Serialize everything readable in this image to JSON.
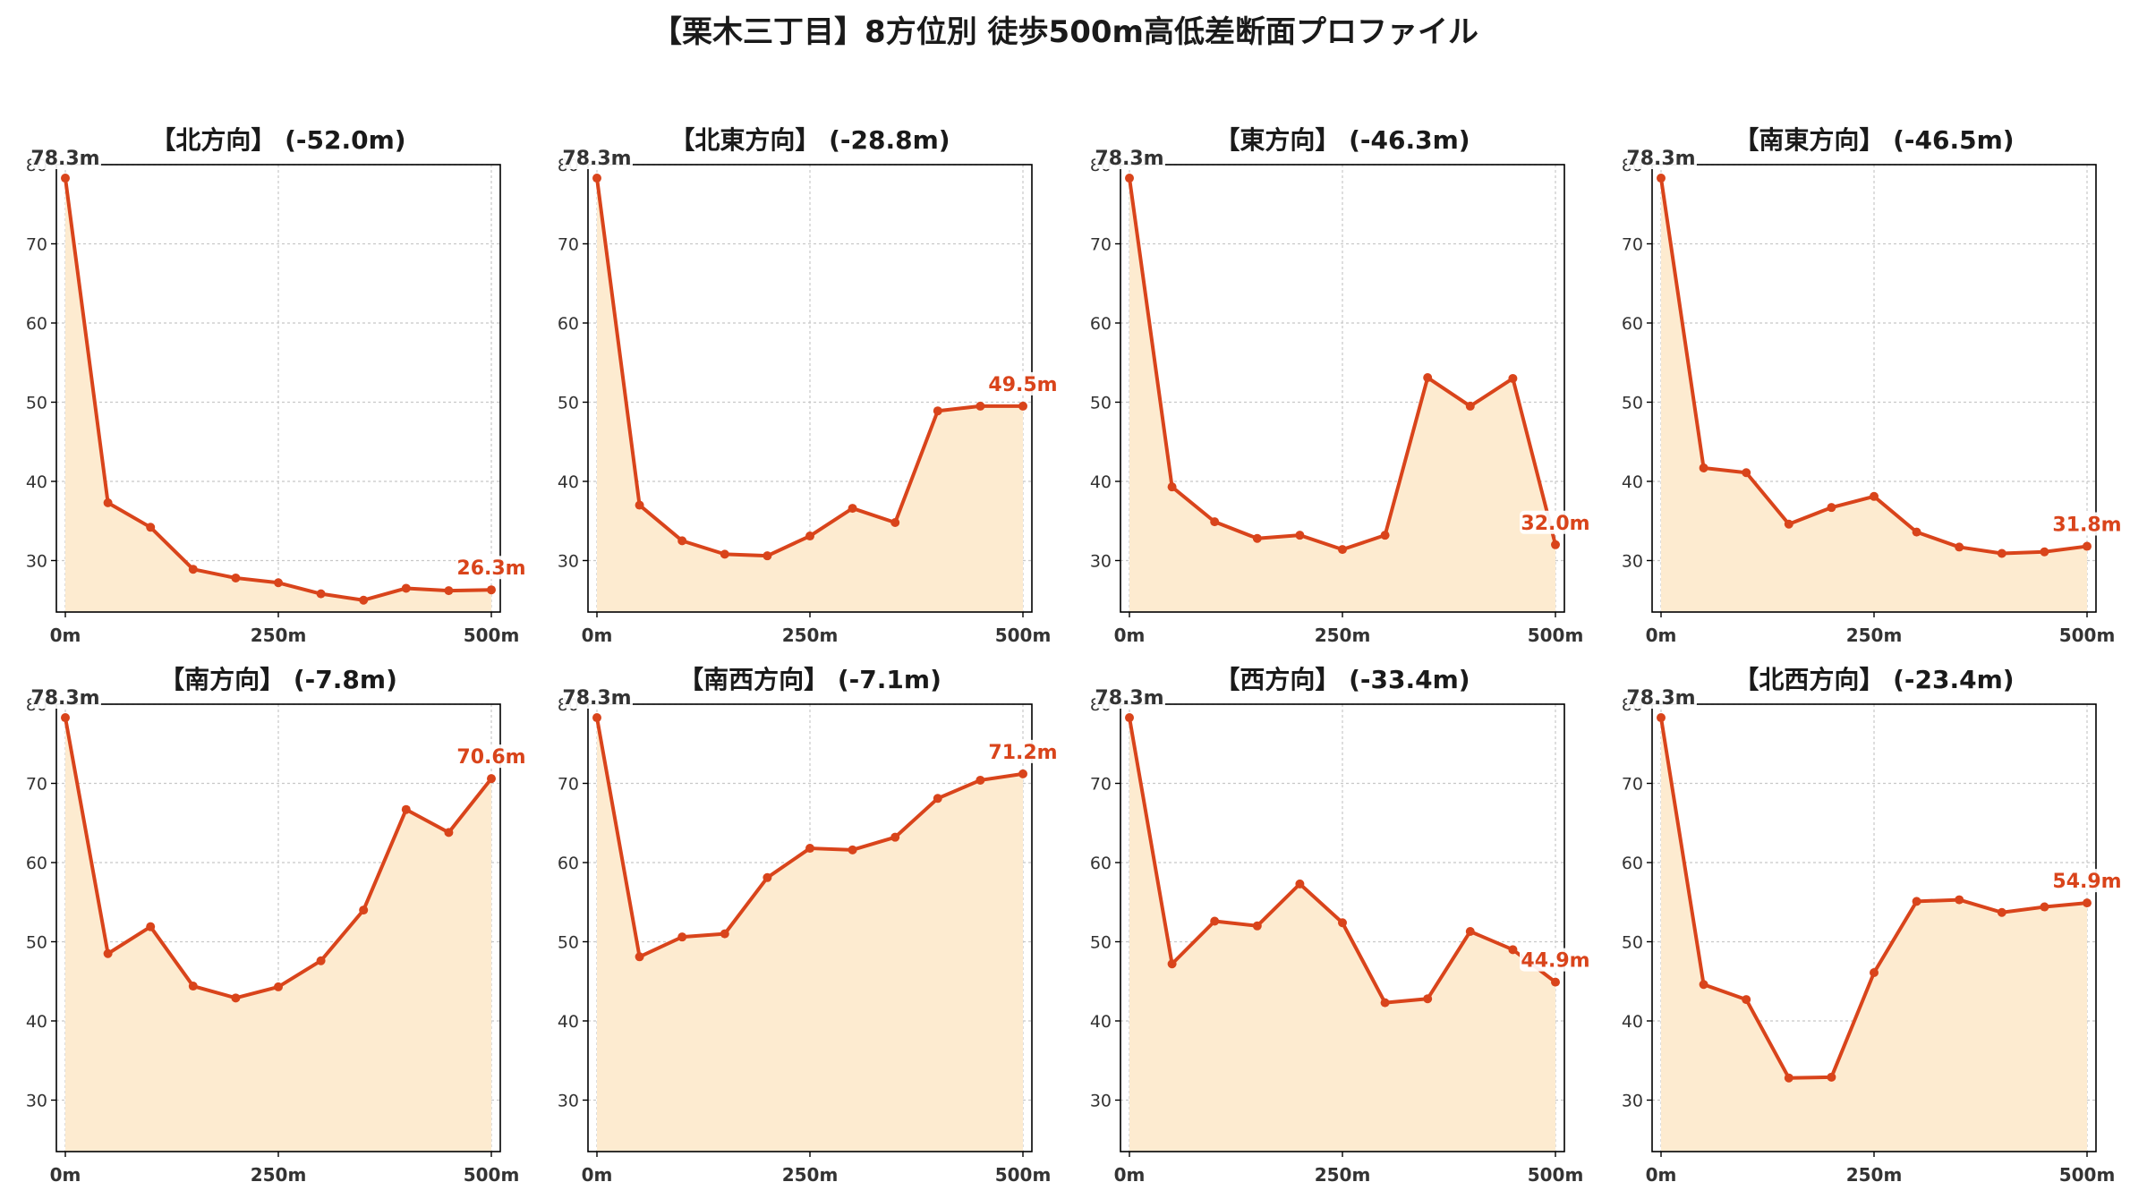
{
  "title": "【栗木三丁目】8方位別 徒歩500m高低差断面プロファイル",
  "colors": {
    "line": "#d9441b",
    "fill": "#fdebd0",
    "grid": "#c8c8c8",
    "axis": "#000000",
    "tick_text": "#333333"
  },
  "chart_data": [
    {
      "type": "area",
      "title": "【北方向】 (-52.0m)",
      "x": [
        0,
        50,
        100,
        150,
        200,
        250,
        300,
        350,
        400,
        450,
        500
      ],
      "values": [
        78.3,
        37.3,
        34.2,
        28.9,
        27.8,
        27.2,
        25.8,
        25.0,
        26.5,
        26.2,
        26.3
      ],
      "start_label": "78.3m",
      "end_label": "26.3m",
      "xticks": [
        "0m",
        "250m",
        "500m"
      ],
      "yticks": [
        "30",
        "40",
        "50",
        "60",
        "70",
        "80"
      ],
      "ylim": [
        23.5,
        80
      ],
      "grid": true
    },
    {
      "type": "area",
      "title": "【北東方向】 (-28.8m)",
      "x": [
        0,
        50,
        100,
        150,
        200,
        250,
        300,
        350,
        400,
        450,
        500
      ],
      "values": [
        78.3,
        37.0,
        32.5,
        30.8,
        30.6,
        33.1,
        36.6,
        34.8,
        48.9,
        49.5,
        49.5
      ],
      "start_label": "78.3m",
      "end_label": "49.5m",
      "xticks": [
        "0m",
        "250m",
        "500m"
      ],
      "yticks": [
        "30",
        "40",
        "50",
        "60",
        "70",
        "80"
      ],
      "ylim": [
        23.5,
        80
      ],
      "grid": true
    },
    {
      "type": "area",
      "title": "【東方向】 (-46.3m)",
      "x": [
        0,
        50,
        100,
        150,
        200,
        250,
        300,
        350,
        400,
        450,
        500
      ],
      "values": [
        78.3,
        39.3,
        34.9,
        32.8,
        33.2,
        31.4,
        33.2,
        53.1,
        49.5,
        53.0,
        32.0
      ],
      "start_label": "78.3m",
      "end_label": "32.0m",
      "xticks": [
        "0m",
        "250m",
        "500m"
      ],
      "yticks": [
        "30",
        "40",
        "50",
        "60",
        "70",
        "80"
      ],
      "ylim": [
        23.5,
        80
      ],
      "grid": true
    },
    {
      "type": "area",
      "title": "【南東方向】 (-46.5m)",
      "x": [
        0,
        50,
        100,
        150,
        200,
        250,
        300,
        350,
        400,
        450,
        500
      ],
      "values": [
        78.3,
        41.7,
        41.1,
        34.6,
        36.7,
        38.1,
        33.6,
        31.7,
        30.9,
        31.1,
        31.8
      ],
      "start_label": "78.3m",
      "end_label": "31.8m",
      "xticks": [
        "0m",
        "250m",
        "500m"
      ],
      "yticks": [
        "30",
        "40",
        "50",
        "60",
        "70",
        "80"
      ],
      "ylim": [
        23.5,
        80
      ],
      "grid": true
    },
    {
      "type": "area",
      "title": "【南方向】 (-7.8m)",
      "x": [
        0,
        50,
        100,
        150,
        200,
        250,
        300,
        350,
        400,
        450,
        500
      ],
      "values": [
        78.3,
        48.5,
        51.9,
        44.4,
        42.9,
        44.3,
        47.6,
        54.0,
        66.7,
        63.8,
        70.6
      ],
      "start_label": "78.3m",
      "end_label": "70.6m",
      "xticks": [
        "0m",
        "250m",
        "500m"
      ],
      "yticks": [
        "30",
        "40",
        "50",
        "60",
        "70",
        "80"
      ],
      "ylim": [
        23.5,
        80
      ],
      "grid": true
    },
    {
      "type": "area",
      "title": "【南西方向】 (-7.1m)",
      "x": [
        0,
        50,
        100,
        150,
        200,
        250,
        300,
        350,
        400,
        450,
        500
      ],
      "values": [
        78.3,
        48.1,
        50.6,
        51.0,
        58.1,
        61.8,
        61.6,
        63.2,
        68.1,
        70.4,
        71.2
      ],
      "start_label": "78.3m",
      "end_label": "71.2m",
      "xticks": [
        "0m",
        "250m",
        "500m"
      ],
      "yticks": [
        "30",
        "40",
        "50",
        "60",
        "70",
        "80"
      ],
      "ylim": [
        23.5,
        80
      ],
      "grid": true
    },
    {
      "type": "area",
      "title": "【西方向】 (-33.4m)",
      "x": [
        0,
        50,
        100,
        150,
        200,
        250,
        300,
        350,
        400,
        450,
        500
      ],
      "values": [
        78.3,
        47.2,
        52.6,
        52.0,
        57.3,
        52.4,
        42.3,
        42.8,
        51.3,
        49.0,
        44.9
      ],
      "start_label": "78.3m",
      "end_label": "44.9m",
      "xticks": [
        "0m",
        "250m",
        "500m"
      ],
      "yticks": [
        "30",
        "40",
        "50",
        "60",
        "70",
        "80"
      ],
      "ylim": [
        23.5,
        80
      ],
      "grid": true
    },
    {
      "type": "area",
      "title": "【北西方向】 (-23.4m)",
      "x": [
        0,
        50,
        100,
        150,
        200,
        250,
        300,
        350,
        400,
        450,
        500
      ],
      "values": [
        78.3,
        44.6,
        42.7,
        32.8,
        32.9,
        46.1,
        55.1,
        55.3,
        53.7,
        54.4,
        54.9
      ],
      "start_label": "78.3m",
      "end_label": "54.9m",
      "xticks": [
        "0m",
        "250m",
        "500m"
      ],
      "yticks": [
        "30",
        "40",
        "50",
        "60",
        "70",
        "80"
      ],
      "ylim": [
        23.5,
        80
      ],
      "grid": true
    }
  ]
}
